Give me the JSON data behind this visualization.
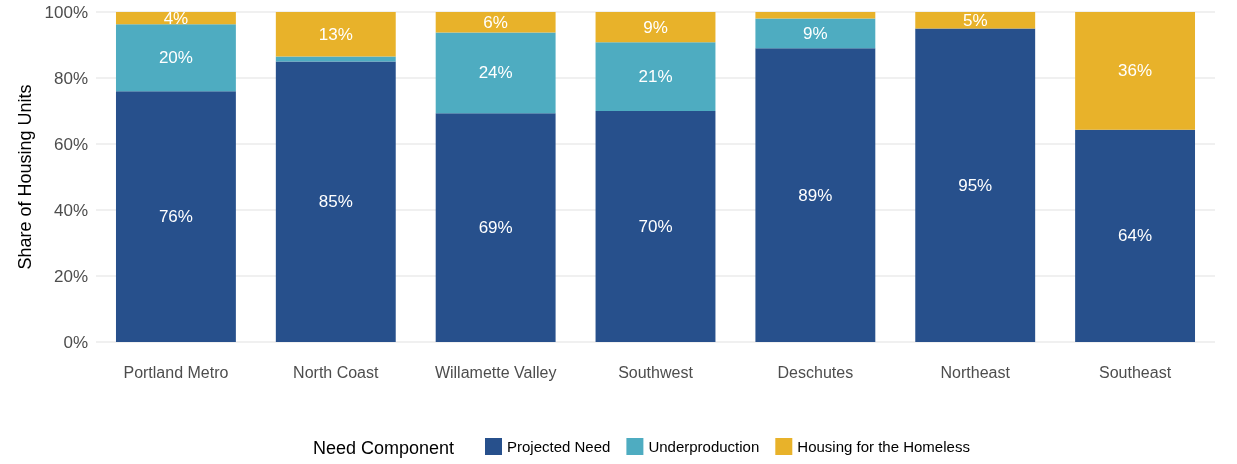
{
  "chart_data": {
    "type": "bar",
    "stacked": true,
    "ylabel": "Share of Housing Units",
    "legend_title": "Need Component",
    "legend": "bottom",
    "grid": "y",
    "categories": [
      "Portland Metro",
      "North Coast",
      "Willamette Valley",
      "Southwest",
      "Deschutes",
      "Northeast",
      "Southeast"
    ],
    "ylim": [
      0,
      100
    ],
    "yticks": [
      {
        "value": 0,
        "label": "0%"
      },
      {
        "value": 20,
        "label": "20%"
      },
      {
        "value": 40,
        "label": "40%"
      },
      {
        "value": 60,
        "label": "60%"
      },
      {
        "value": 80,
        "label": "80%"
      },
      {
        "value": 100,
        "label": "100%"
      }
    ],
    "series": [
      {
        "name": "Projected Need",
        "color": "#27508c",
        "values": [
          76,
          85,
          69.3,
          70,
          89,
          95,
          64.3
        ],
        "value_labels": [
          "76%",
          "85%",
          "69%",
          "70%",
          "89%",
          "95%",
          "64%"
        ]
      },
      {
        "name": "Underproduction",
        "color": "#4eacc1",
        "values": [
          20.3,
          1.5,
          24.5,
          20.8,
          9,
          0,
          0
        ],
        "value_labels": [
          "20%",
          null,
          "24%",
          "21%",
          "9%",
          null,
          null
        ]
      },
      {
        "name": "Housing for the Homeless",
        "color": "#e8b22a",
        "values": [
          3.7,
          13.5,
          6.2,
          9.2,
          2,
          5,
          35.7
        ],
        "value_labels": [
          "4%",
          "13%",
          "6%",
          "9%",
          null,
          "5%",
          "36%"
        ]
      }
    ]
  }
}
